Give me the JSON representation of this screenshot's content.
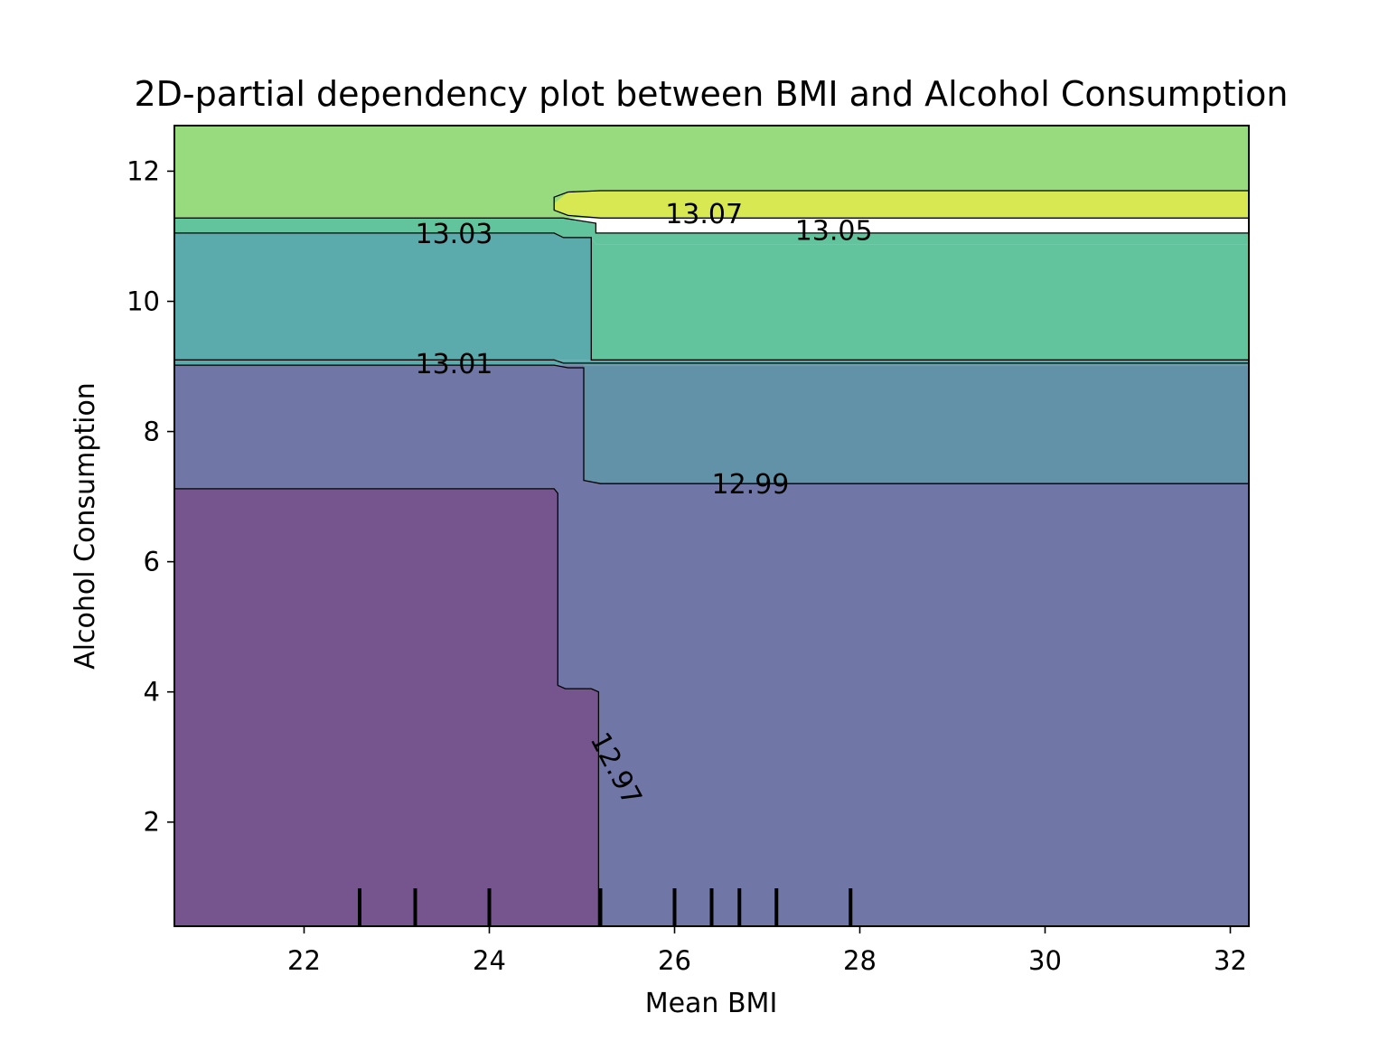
{
  "chart_data": {
    "type": "contour",
    "title": "2D-partial dependency plot between BMI and Alcohol Consumption",
    "xlabel": "Mean BMI",
    "ylabel": "Alcohol Consumption",
    "xlim": [
      20.6,
      32.2
    ],
    "ylim": [
      0.4,
      12.7
    ],
    "xticks": [
      22,
      24,
      26,
      28,
      30,
      32
    ],
    "yticks": [
      2,
      4,
      6,
      8,
      10,
      12
    ],
    "rug_x": [
      22.6,
      23.2,
      24.0,
      25.2,
      26.0,
      26.4,
      26.7,
      27.1,
      27.9
    ],
    "colors": {
      "level_12_96": "#76558f",
      "level_12_98": "#7077a6",
      "level_13_00": "#6192a8",
      "level_13_02": "#5baaac",
      "level_13_04": "#62c49d",
      "level_13_06": "#98db7e",
      "level_13_08": "#d7e852"
    },
    "regions": [
      {
        "level": "level_13_06",
        "points": [
          [
            20.6,
            12.7
          ],
          [
            32.2,
            12.7
          ],
          [
            32.2,
            11.28
          ],
          [
            20.6,
            11.28
          ]
        ]
      },
      {
        "level": "level_13_02",
        "points": [
          [
            20.6,
            11.05
          ],
          [
            24.7,
            11.05
          ],
          [
            24.8,
            10.98
          ],
          [
            25.1,
            10.98
          ],
          [
            25.1,
            9.1
          ],
          [
            20.6,
            9.1
          ]
        ]
      },
      {
        "level": "level_13_04",
        "points": [
          [
            25.1,
            10.98
          ],
          [
            25.15,
            10.88
          ],
          [
            32.2,
            10.88
          ],
          [
            32.2,
            9.1
          ],
          [
            25.1,
            9.1
          ]
        ]
      },
      {
        "level": "level_13_04",
        "points": [
          [
            20.6,
            11.28
          ],
          [
            24.7,
            11.28
          ],
          [
            24.8,
            11.28
          ],
          [
            25.15,
            11.2
          ],
          [
            25.15,
            11.05
          ],
          [
            32.2,
            11.05
          ],
          [
            32.2,
            10.88
          ],
          [
            25.15,
            10.88
          ],
          [
            25.1,
            10.98
          ],
          [
            24.8,
            10.98
          ],
          [
            24.7,
            11.05
          ],
          [
            20.6,
            11.05
          ]
        ]
      },
      {
        "level": "level_13_08",
        "points": [
          [
            24.7,
            11.5
          ],
          [
            24.85,
            11.68
          ],
          [
            25.2,
            11.7
          ],
          [
            25.4,
            11.7
          ],
          [
            32.2,
            11.7
          ],
          [
            32.2,
            11.28
          ],
          [
            25.4,
            11.28
          ],
          [
            25.2,
            11.28
          ],
          [
            24.85,
            11.32
          ],
          [
            24.7,
            11.4
          ]
        ]
      },
      {
        "level": "level_13_02",
        "points": [
          [
            20.6,
            9.1
          ],
          [
            32.2,
            9.1
          ],
          [
            32.2,
            9.02
          ],
          [
            20.6,
            9.02
          ]
        ]
      },
      {
        "level": "level_13_00",
        "points": [
          [
            25.02,
            9.02
          ],
          [
            32.2,
            9.02
          ],
          [
            32.2,
            7.2
          ],
          [
            25.2,
            7.2
          ],
          [
            25.02,
            7.25
          ]
        ]
      },
      {
        "level": "level_12_98",
        "points": [
          [
            20.6,
            9.02
          ],
          [
            25.02,
            9.02
          ],
          [
            25.02,
            7.25
          ],
          [
            25.2,
            7.2
          ],
          [
            32.2,
            7.2
          ],
          [
            32.2,
            0.4
          ],
          [
            20.6,
            0.4
          ],
          [
            20.6,
            7.12
          ],
          [
            24.74,
            7.12
          ],
          [
            24.74,
            4.1
          ],
          [
            24.82,
            4.05
          ],
          [
            25.1,
            4.05
          ],
          [
            25.18,
            4.0
          ],
          [
            25.18,
            0.4
          ],
          [
            20.6,
            0.4
          ]
        ]
      },
      {
        "level": "level_12_96",
        "points": [
          [
            20.6,
            7.12
          ],
          [
            24.7,
            7.12
          ],
          [
            24.74,
            7.05
          ],
          [
            24.74,
            4.1
          ],
          [
            24.82,
            4.05
          ],
          [
            25.1,
            4.05
          ],
          [
            25.18,
            4.0
          ],
          [
            25.18,
            0.4
          ],
          [
            20.6,
            0.4
          ]
        ]
      }
    ],
    "contours": [
      {
        "label": "13.07",
        "label_at": [
          25.9,
          11.35
        ],
        "rotation": 0,
        "points": [
          [
            32.2,
            11.7
          ],
          [
            25.4,
            11.7
          ],
          [
            25.2,
            11.7
          ],
          [
            24.85,
            11.68
          ],
          [
            24.7,
            11.6
          ],
          [
            24.7,
            11.4
          ],
          [
            24.85,
            11.32
          ],
          [
            25.2,
            11.28
          ],
          [
            25.4,
            11.28
          ],
          [
            32.2,
            11.28
          ]
        ]
      },
      {
        "label": "13.05",
        "label_at": [
          27.3,
          11.1
        ],
        "rotation": 0,
        "points": [
          [
            20.6,
            11.28
          ],
          [
            24.7,
            11.28
          ],
          [
            24.8,
            11.28
          ],
          [
            25.15,
            11.2
          ],
          [
            25.15,
            11.05
          ],
          [
            32.2,
            11.05
          ]
        ]
      },
      {
        "label": "13.03",
        "label_at": [
          23.2,
          11.05
        ],
        "rotation": 0,
        "points": [
          [
            20.6,
            11.05
          ],
          [
            24.7,
            11.05
          ],
          [
            24.8,
            10.98
          ],
          [
            25.1,
            10.98
          ],
          [
            25.1,
            9.1
          ],
          [
            32.2,
            9.1
          ]
        ]
      },
      {
        "label": "13.01",
        "label_at": [
          23.2,
          9.05
        ],
        "rotation": 0,
        "points": [
          [
            20.6,
            9.1
          ],
          [
            24.7,
            9.1
          ],
          [
            24.8,
            9.05
          ],
          [
            32.2,
            9.05
          ]
        ]
      },
      {
        "label": "",
        "label_at": null,
        "rotation": 0,
        "points": [
          [
            20.6,
            9.02
          ],
          [
            24.7,
            9.02
          ],
          [
            24.85,
            8.98
          ],
          [
            25.02,
            8.98
          ],
          [
            25.02,
            7.25
          ],
          [
            25.2,
            7.2
          ],
          [
            32.2,
            7.2
          ]
        ]
      },
      {
        "label": "12.99",
        "label_at": [
          26.4,
          7.2
        ],
        "rotation": 0,
        "points": []
      },
      {
        "label": "12.97",
        "label_at": [
          25.18,
          3.35
        ],
        "rotation": 62,
        "points": [
          [
            20.6,
            7.12
          ],
          [
            24.7,
            7.12
          ],
          [
            24.74,
            7.05
          ],
          [
            24.74,
            4.1
          ],
          [
            24.82,
            4.05
          ],
          [
            25.1,
            4.05
          ],
          [
            25.18,
            4.0
          ],
          [
            25.18,
            3.0
          ],
          [
            25.18,
            0.4
          ]
        ]
      }
    ]
  }
}
